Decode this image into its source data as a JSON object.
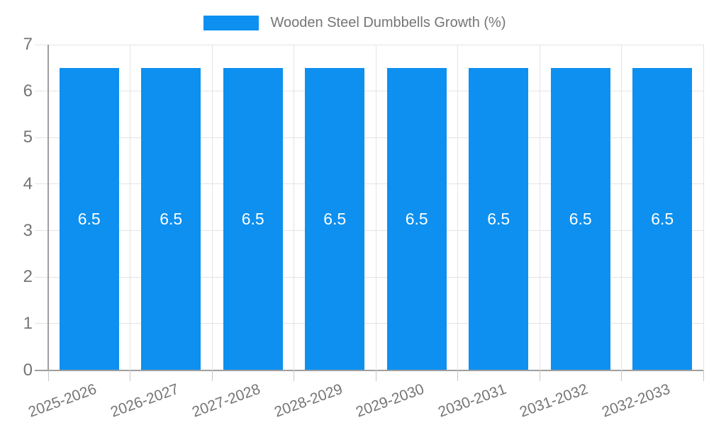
{
  "legend": {
    "label": "Wooden Steel Dumbbells Growth (%)"
  },
  "chart_data": {
    "type": "bar",
    "title": "Wooden Steel Dumbbells Growth (%)",
    "categories": [
      "2025-2026",
      "2026-2027",
      "2027-2028",
      "2028-2029",
      "2029-2030",
      "2030-2031",
      "2031-2032",
      "2032-2033"
    ],
    "values": [
      6.5,
      6.5,
      6.5,
      6.5,
      6.5,
      6.5,
      6.5,
      6.5
    ],
    "bar_value_labels": [
      "6.5",
      "6.5",
      "6.5",
      "6.5",
      "6.5",
      "6.5",
      "6.5",
      "6.5"
    ],
    "xlabel": "",
    "ylabel": "",
    "ylim": [
      0,
      7
    ],
    "y_ticks": [
      0,
      1,
      2,
      3,
      4,
      5,
      6,
      7
    ],
    "grid": true,
    "legend_position": "top",
    "colors": {
      "bar": "#0d90f0",
      "bar_value_text": "#ffffff",
      "axis_text": "#757575",
      "legend_text": "#757575",
      "gridline": "#e4e4e4",
      "axis_line": "#9e9e9e",
      "tick": "#c6c6c6",
      "background": "#ffffff"
    }
  }
}
